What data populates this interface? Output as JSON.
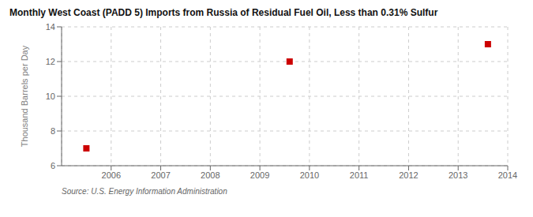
{
  "chart_data": {
    "type": "scatter",
    "title": "Monthly West Coast (PADD 5) Imports from Russia of Residual Fuel Oil, Less than 0.31% Sulfur",
    "y_label": "Thousand Barrels per Day",
    "annotations": [
      "Source: U.S. Energy Information Administration"
    ],
    "x": [
      2005.5,
      2009.6,
      2013.6
    ],
    "values": [
      7.0,
      12.0,
      13.0
    ],
    "color": "#cc0000",
    "marker": "square",
    "xlim": [
      2005.0,
      2014.0
    ],
    "ylim": [
      6,
      14
    ],
    "xticks": [
      2006,
      2007,
      2008,
      2009,
      2010,
      2011,
      2012,
      2013,
      2014
    ],
    "yticks": [
      6,
      8,
      10,
      12,
      14
    ],
    "grid": true
  }
}
